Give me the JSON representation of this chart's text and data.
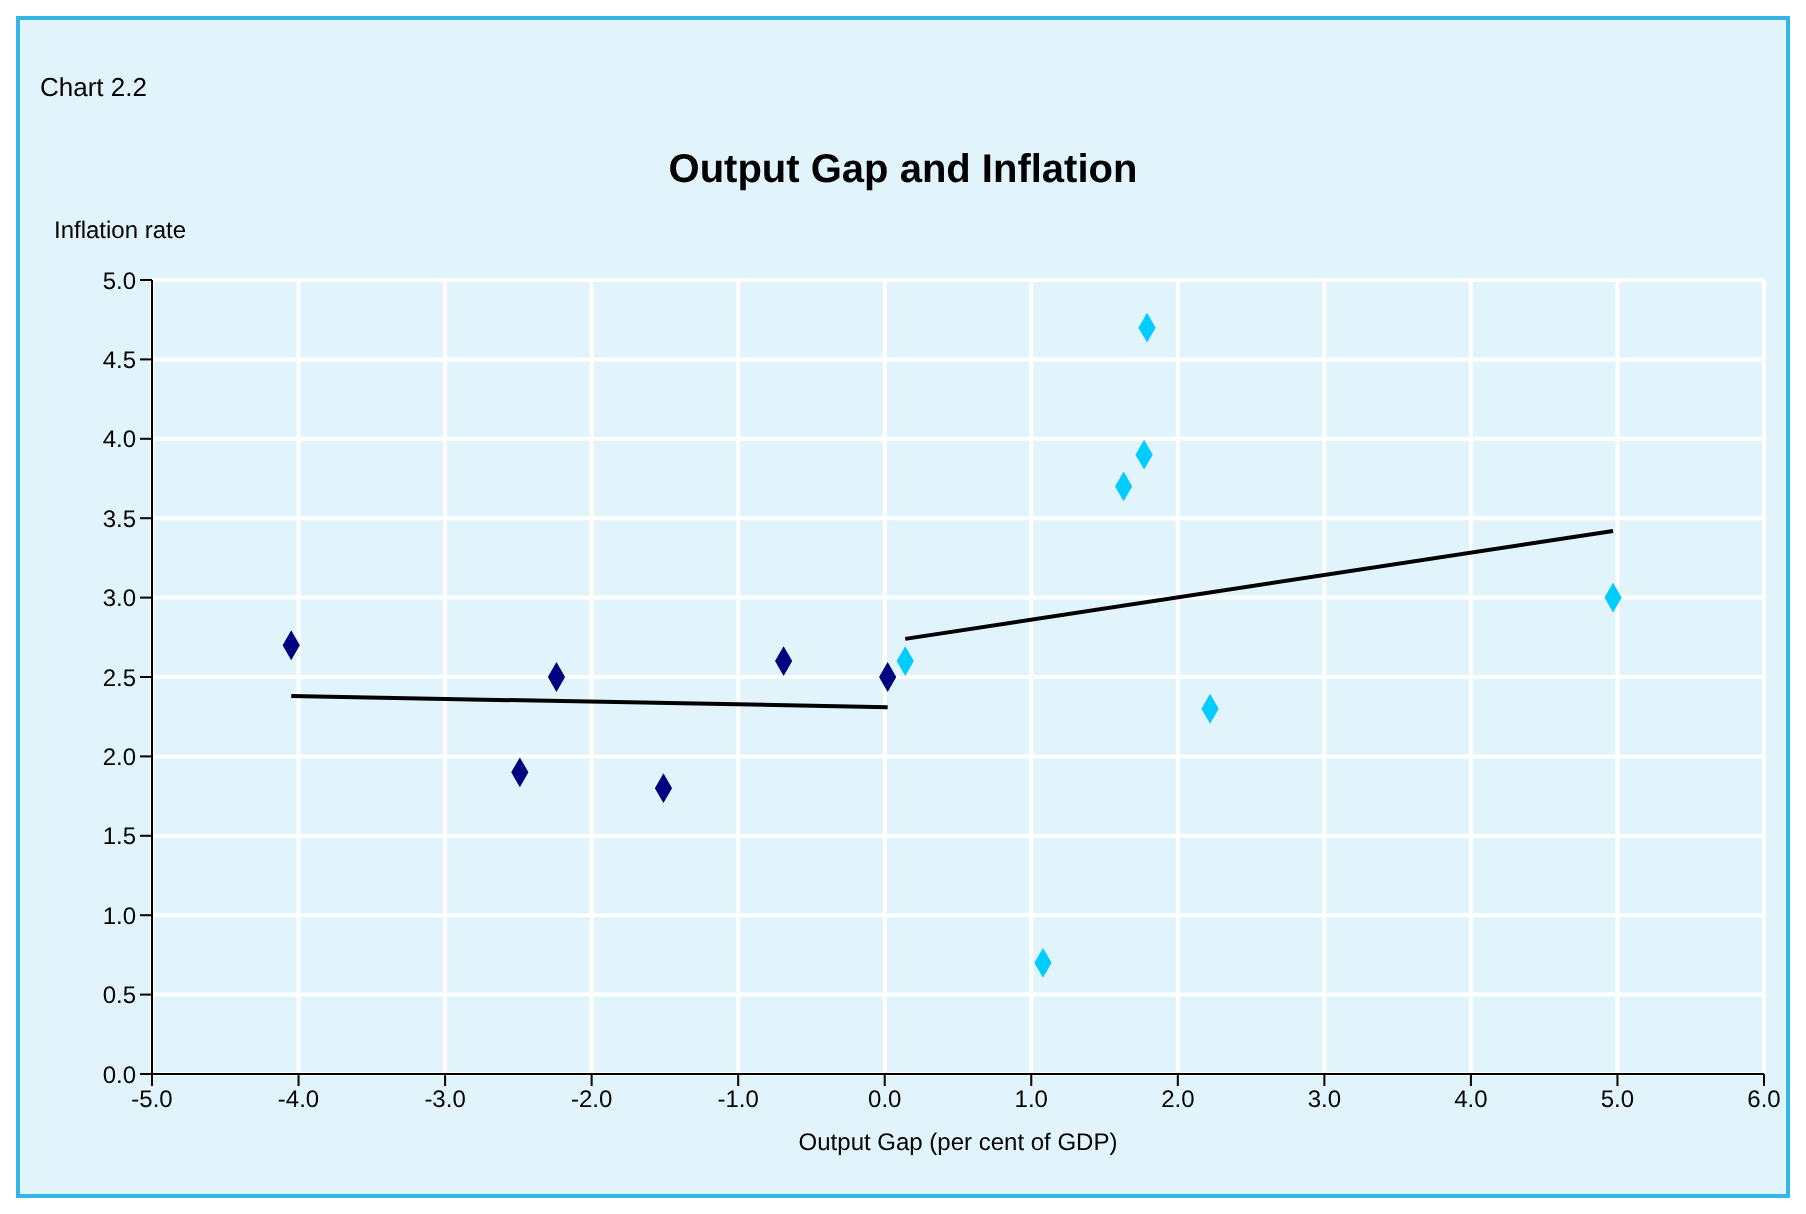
{
  "chart_data": {
    "type": "scatter",
    "title": "Output Gap and Inflation",
    "xlabel": "Output Gap (per cent of GDP)",
    "ylabel": "Inflation rate",
    "annotations": [
      "Chart 2.2"
    ],
    "xlim": [
      -5,
      6
    ],
    "xticks": [
      {
        "value": -5,
        "label": "-5.0"
      },
      {
        "value": -4,
        "label": "-4.0"
      },
      {
        "value": -3,
        "label": "-3.0"
      },
      {
        "value": -2,
        "label": "-2.0"
      },
      {
        "value": -1,
        "label": "-1.0"
      },
      {
        "value": 0,
        "label": "0.0"
      },
      {
        "value": 1,
        "label": "1.0"
      },
      {
        "value": 2,
        "label": "2.0"
      },
      {
        "value": 3,
        "label": "3.0"
      },
      {
        "value": 4,
        "label": "4.0"
      },
      {
        "value": 5,
        "label": "5.0"
      },
      {
        "value": 6,
        "label": "6.0"
      }
    ],
    "ylim": [
      0,
      5
    ],
    "yticks": [
      {
        "value": 0,
        "label": "0.0"
      },
      {
        "value": 0.5,
        "label": "0.5"
      },
      {
        "value": 1,
        "label": "1.0"
      },
      {
        "value": 1.5,
        "label": "1.5"
      },
      {
        "value": 2,
        "label": "2.0"
      },
      {
        "value": 2.5,
        "label": "2.5"
      },
      {
        "value": 3,
        "label": "3.0"
      },
      {
        "value": 3.5,
        "label": "3.5"
      },
      {
        "value": 4,
        "label": "4.0"
      },
      {
        "value": 4.5,
        "label": "4.5"
      },
      {
        "value": 5,
        "label": "5.0"
      }
    ],
    "grid": true,
    "marker": "diamond",
    "series": [
      {
        "type": "scatter",
        "color": "#000080",
        "x": [
          -4.05,
          -2.24,
          -2.49,
          -1.51,
          -0.69,
          0.02
        ],
        "values": [
          2.7,
          2.5,
          1.9,
          1.8,
          2.6,
          2.5
        ]
      },
      {
        "type": "scatter",
        "color": "#00ccff",
        "x": [
          0.14,
          1.79,
          1.77,
          1.63,
          2.22,
          1.08,
          4.97
        ],
        "values": [
          2.6,
          4.7,
          3.9,
          3.7,
          2.3,
          0.7,
          3.0
        ]
      },
      {
        "type": "line",
        "color": "#000000",
        "line_style": "solid",
        "marker": "none",
        "x": [
          -4.05,
          0.02
        ],
        "values": [
          2.38,
          2.31
        ]
      },
      {
        "type": "line",
        "color": "#000000",
        "line_style": "solid",
        "marker": "none",
        "x": [
          0.14,
          4.97
        ],
        "values": [
          2.74,
          3.42
        ]
      }
    ]
  }
}
